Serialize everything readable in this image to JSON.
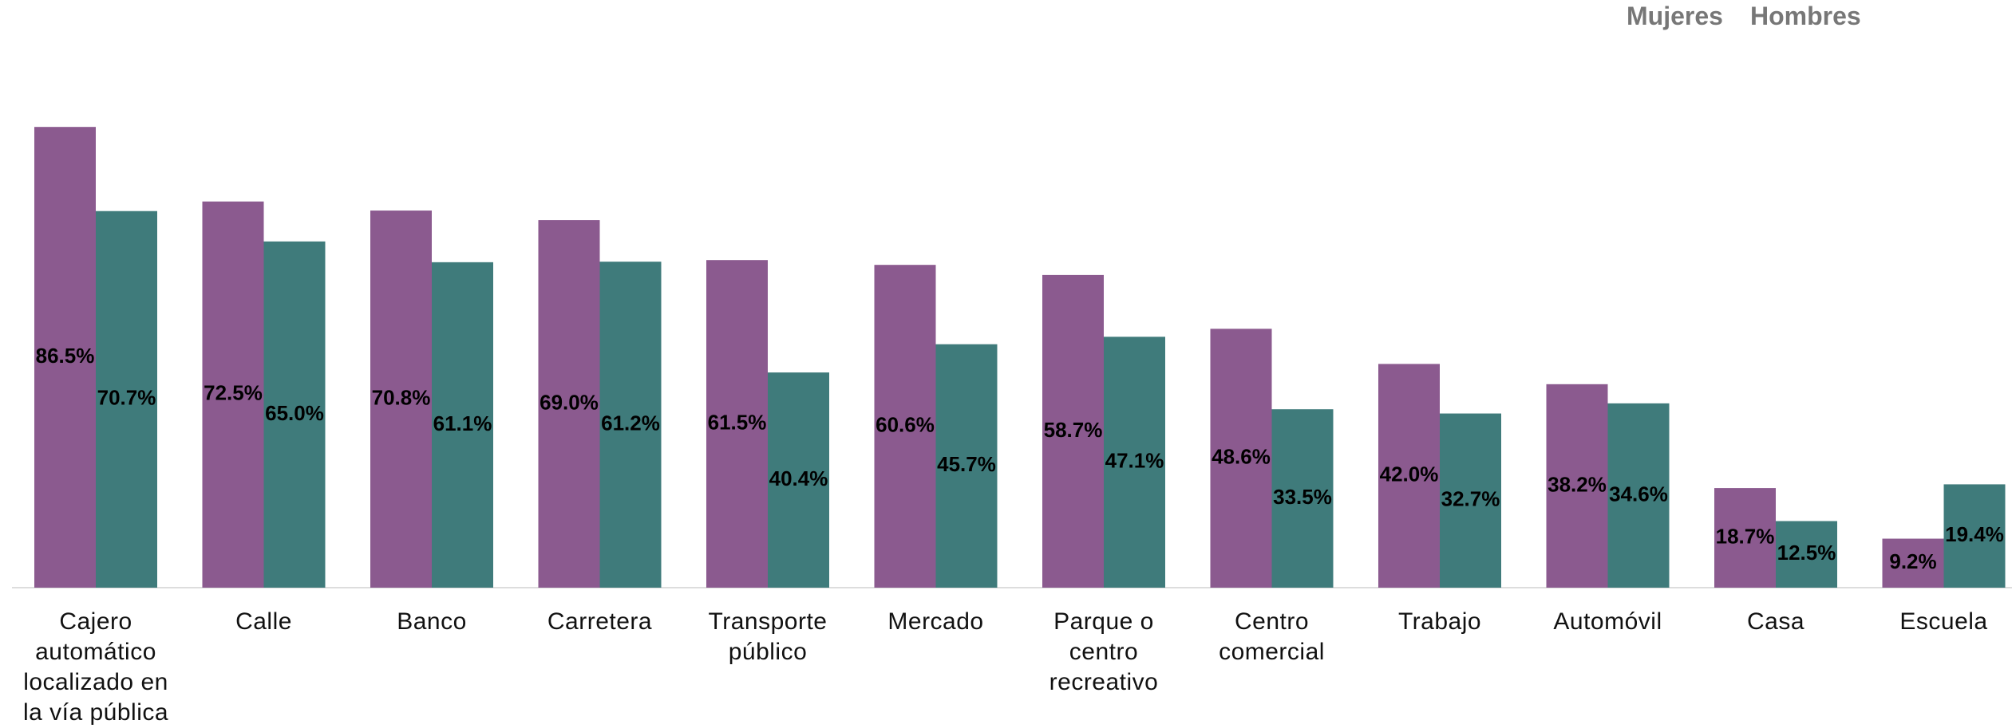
{
  "chart_data": {
    "type": "bar",
    "categories": [
      "Cajero automático localizado en la vía pública",
      "Calle",
      "Banco",
      "Carretera",
      "Transporte público",
      "Mercado",
      "Parque o centro recreativo",
      "Centro comercial",
      "Trabajo",
      "Automóvil",
      "Casa",
      "Escuela"
    ],
    "series": [
      {
        "name": "Mujeres",
        "color": "#8b5a8f",
        "values": [
          86.5,
          72.5,
          70.8,
          69.0,
          61.5,
          60.6,
          58.7,
          48.6,
          42.0,
          38.2,
          18.7,
          9.2
        ],
        "value_labels": [
          "86.5%",
          "72.5%",
          "70.8%",
          "69.0%",
          "61.5%",
          "60.6%",
          "58.7%",
          "48.6%",
          "42.0%",
          "38.2%",
          "18.7%",
          "9.2%"
        ]
      },
      {
        "name": "Hombres",
        "color": "#3f7b7b",
        "values": [
          70.7,
          65.0,
          61.1,
          61.2,
          40.4,
          45.7,
          47.1,
          33.5,
          32.7,
          34.6,
          12.5,
          19.4
        ],
        "value_labels": [
          "70.7%",
          "65.0%",
          "61.1%",
          "61.2%",
          "40.4%",
          "45.7%",
          "47.1%",
          "33.5%",
          "32.7%",
          "34.6%",
          "12.5%",
          "19.4%"
        ]
      }
    ],
    "legend": "upper right"
  }
}
